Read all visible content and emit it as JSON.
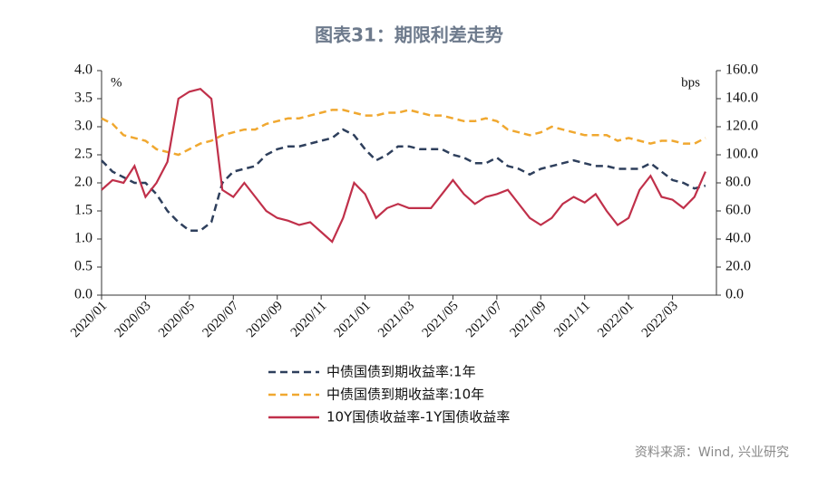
{
  "chart_data": {
    "type": "line",
    "title": "图表31：期限利差走势",
    "source": "资料来源：Wind, 兴业研究",
    "y_unit": "%",
    "y2_unit": "bps",
    "categories": [
      "2020/01",
      null,
      null,
      null,
      "2020/03",
      null,
      null,
      null,
      "2020/05",
      null,
      null,
      null,
      "2020/07",
      null,
      null,
      null,
      "2020/09",
      null,
      null,
      null,
      "2020/11",
      null,
      null,
      null,
      "2021/01",
      null,
      null,
      null,
      "2021/03",
      null,
      null,
      null,
      "2021/05",
      null,
      null,
      null,
      "2021/07",
      null,
      null,
      null,
      "2021/09",
      null,
      null,
      null,
      "2021/11",
      null,
      null,
      null,
      "2022/01",
      null,
      null,
      null,
      "2022/03",
      null,
      null,
      null
    ],
    "ylim": [
      0,
      4
    ],
    "yticks": [
      {
        "value": 0,
        "label": "0.0"
      },
      {
        "value": 0.5,
        "label": "0.5"
      },
      {
        "value": 1,
        "label": "1.0"
      },
      {
        "value": 1.5,
        "label": "1.5"
      },
      {
        "value": 2,
        "label": "2.0"
      },
      {
        "value": 2.5,
        "label": "2.5"
      },
      {
        "value": 3,
        "label": "3.0"
      },
      {
        "value": 3.5,
        "label": "3.5"
      },
      {
        "value": 4,
        "label": "4.0"
      }
    ],
    "y2lim": [
      0,
      160
    ],
    "y2ticks": [
      {
        "value": 0,
        "label": "0.0"
      },
      {
        "value": 20,
        "label": "20.0"
      },
      {
        "value": 40,
        "label": "40.0"
      },
      {
        "value": 60,
        "label": "60.0"
      },
      {
        "value": 80,
        "label": "80.0"
      },
      {
        "value": 100,
        "label": "100.0"
      },
      {
        "value": 120,
        "label": "120.0"
      },
      {
        "value": 140,
        "label": "140.0"
      },
      {
        "value": 160,
        "label": "160.0"
      }
    ],
    "series": [
      {
        "name": "中债国债到期收益率:1年",
        "color": "#2e3f5c",
        "dash": true,
        "values": [
          2.4,
          2.2,
          2.1,
          2.0,
          2.0,
          1.8,
          1.5,
          1.3,
          1.15,
          1.15,
          1.3,
          2.0,
          2.2,
          2.25,
          2.3,
          2.5,
          2.6,
          2.65,
          2.65,
          2.7,
          2.75,
          2.8,
          2.95,
          2.85,
          2.6,
          2.4,
          2.5,
          2.65,
          2.65,
          2.6,
          2.6,
          2.6,
          2.5,
          2.45,
          2.35,
          2.35,
          2.45,
          2.3,
          2.25,
          2.15,
          2.25,
          2.3,
          2.35,
          2.4,
          2.35,
          2.3,
          2.3,
          2.25,
          2.25,
          2.25,
          2.35,
          2.2,
          2.05,
          2.0,
          1.9,
          1.95
        ]
      },
      {
        "name": "中债国债到期收益率:10年",
        "color": "#f0a830",
        "dash": true,
        "values": [
          3.15,
          3.05,
          2.85,
          2.8,
          2.75,
          2.6,
          2.55,
          2.5,
          2.6,
          2.7,
          2.75,
          2.85,
          2.9,
          2.95,
          2.95,
          3.05,
          3.1,
          3.15,
          3.15,
          3.2,
          3.25,
          3.3,
          3.3,
          3.25,
          3.2,
          3.2,
          3.25,
          3.25,
          3.3,
          3.25,
          3.2,
          3.2,
          3.15,
          3.1,
          3.1,
          3.15,
          3.1,
          2.95,
          2.9,
          2.85,
          2.9,
          3.0,
          2.95,
          2.9,
          2.85,
          2.85,
          2.85,
          2.75,
          2.8,
          2.75,
          2.7,
          2.75,
          2.75,
          2.7,
          2.7,
          2.8
        ]
      },
      {
        "name": "10Y国债收益率-1Y国债收益率",
        "color": "#c0304a",
        "dash": false,
        "axis": "y2",
        "values": [
          75,
          82,
          80,
          92,
          70,
          80,
          95,
          140,
          145,
          147,
          140,
          75,
          70,
          80,
          70,
          60,
          55,
          53,
          50,
          52,
          45,
          38,
          55,
          80,
          72,
          55,
          62,
          65,
          62,
          62,
          62,
          72,
          82,
          72,
          65,
          70,
          72,
          75,
          65,
          55,
          50,
          55,
          65,
          70,
          66,
          72,
          60,
          50,
          55,
          75,
          85,
          70,
          68,
          62,
          70,
          88
        ]
      }
    ]
  }
}
